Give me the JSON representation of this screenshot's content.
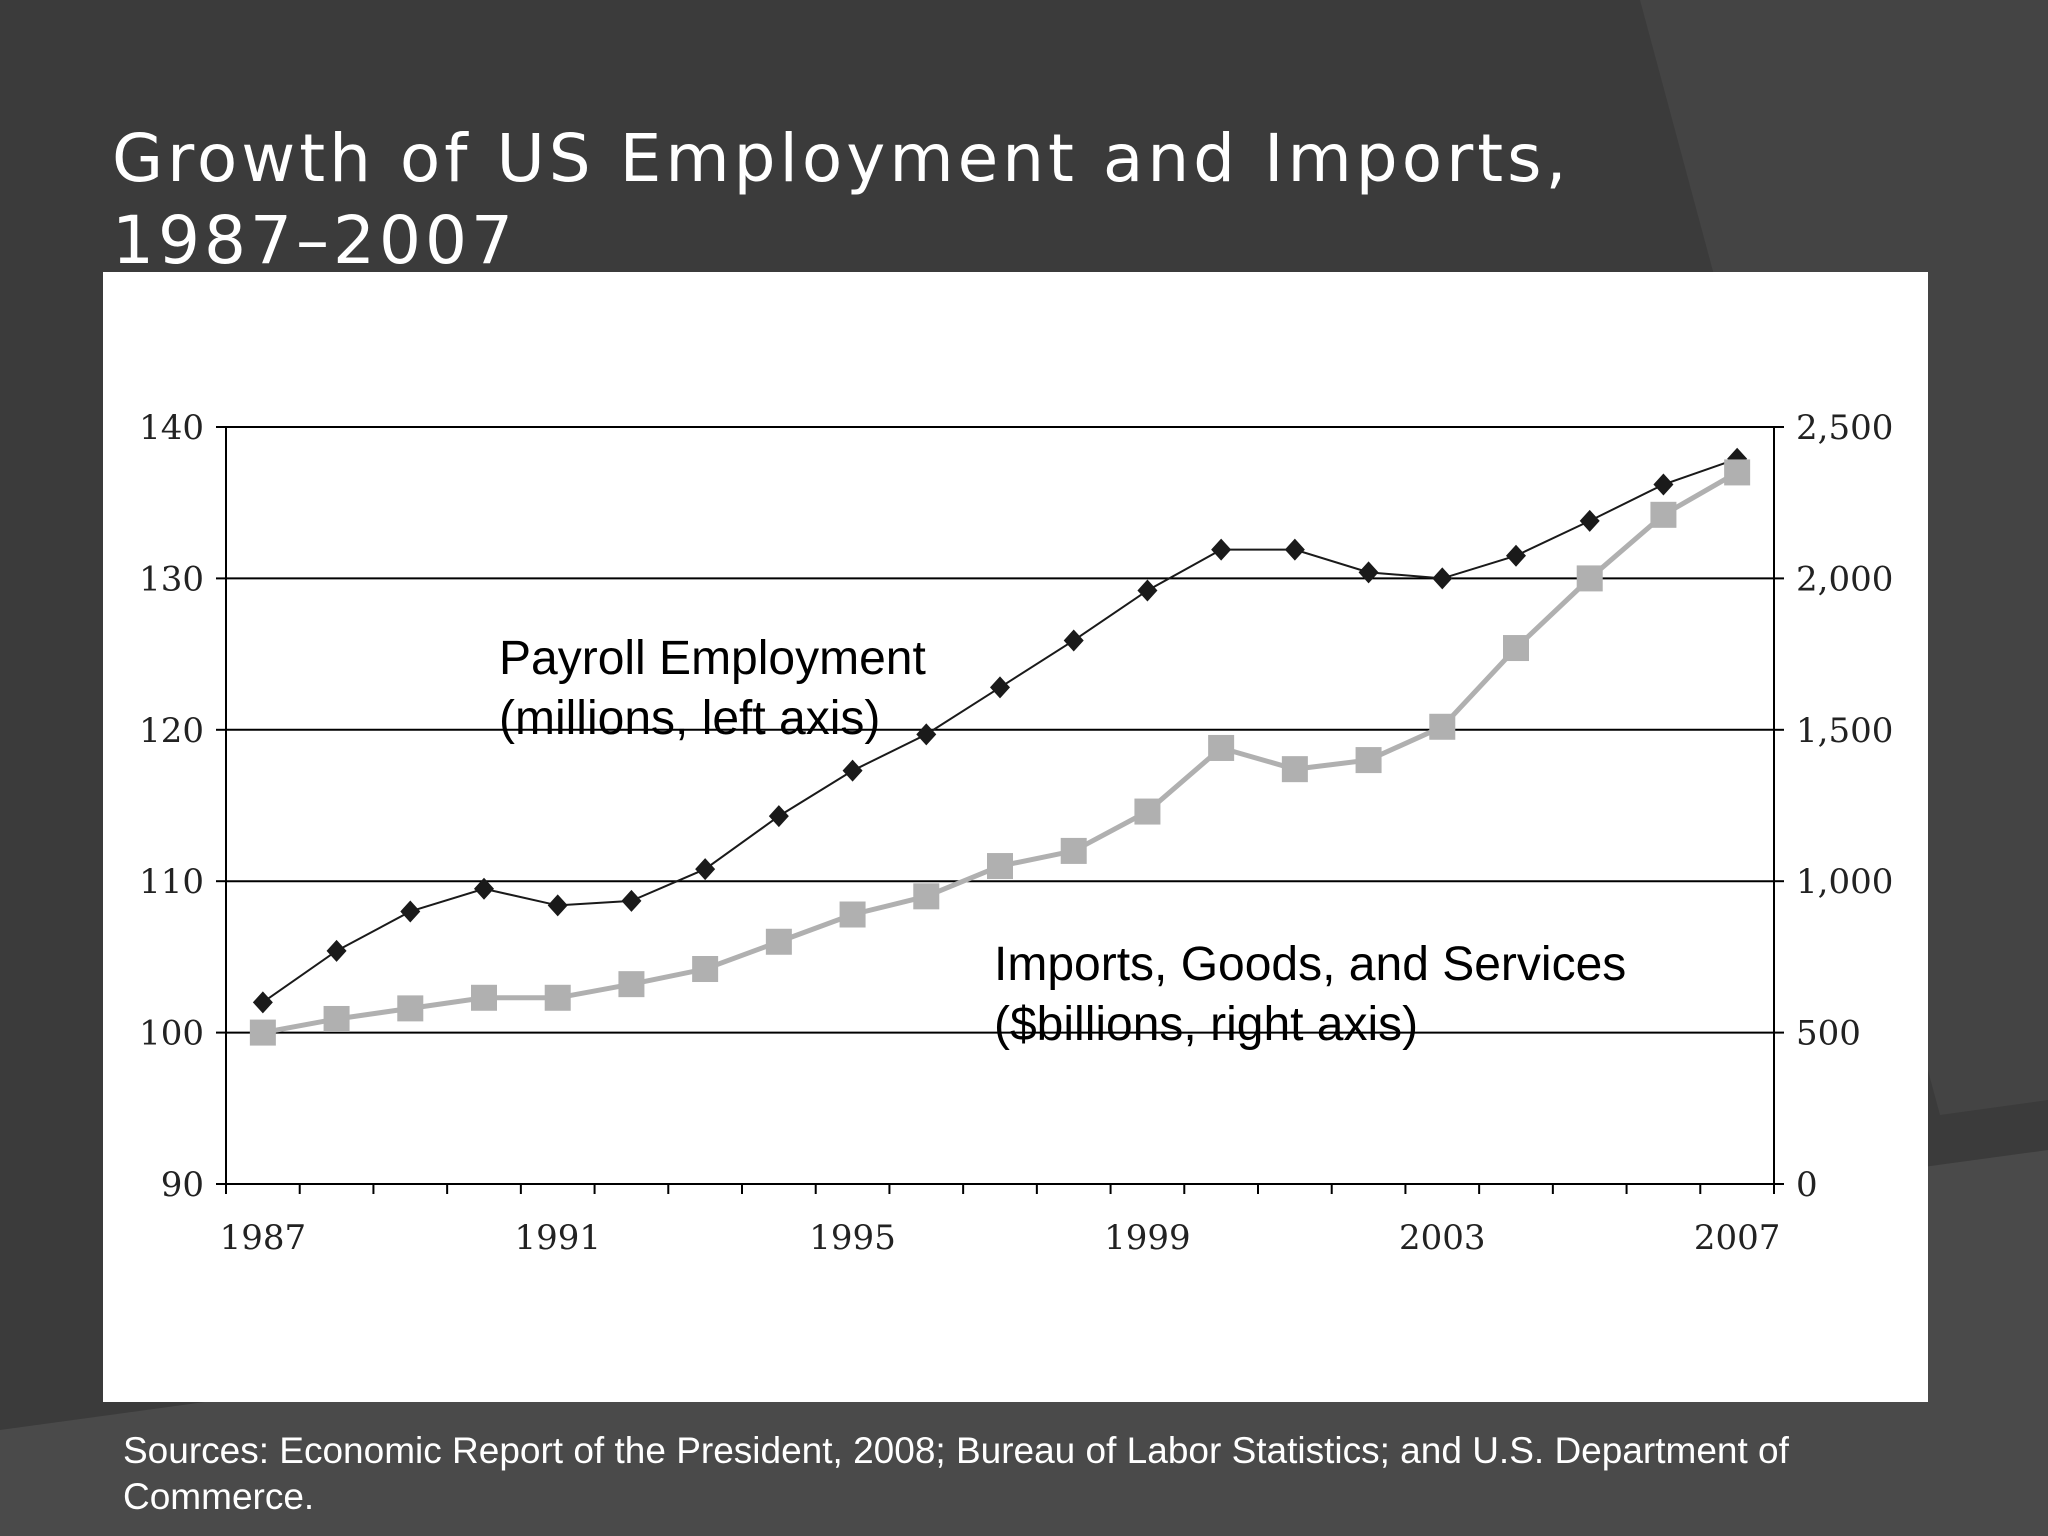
{
  "slide": {
    "title": "Growth of  US Employment and Imports, 1987–2007",
    "sources": "Sources: Economic Report of the President, 2008; Bureau of Labor Statistics; and U.S. Department of Commerce."
  },
  "colors": {
    "background": "#3b3b3b",
    "employment_line": "#1a1a1a",
    "imports_line": "#b0b0b0"
  },
  "chart_data": {
    "type": "line",
    "x": [
      1987,
      1988,
      1989,
      1990,
      1991,
      1992,
      1993,
      1994,
      1995,
      1996,
      1997,
      1998,
      1999,
      2000,
      2001,
      2002,
      2003,
      2004,
      2005,
      2006,
      2007
    ],
    "x_tick_labels": [
      "1987",
      "1991",
      "1995",
      "1999",
      "2003",
      "2007"
    ],
    "xlim": [
      1987,
      2007
    ],
    "left_axis": {
      "ylim": [
        90,
        140
      ],
      "ticks": [
        "90",
        "100",
        "110",
        "120",
        "130",
        "140"
      ]
    },
    "right_axis": {
      "ylim": [
        0,
        2500
      ],
      "ticks": [
        "0",
        "500",
        "1,000",
        "1,500",
        "2,000",
        "2,500"
      ]
    },
    "grid": "horizontal",
    "series": [
      {
        "name": "Payroll Employment (millions, left axis)",
        "label_line1": "Payroll Employment",
        "label_line2": "(millions, left axis)",
        "axis": "left",
        "marker": "diamond",
        "values": [
          102.0,
          105.4,
          108.0,
          109.5,
          108.4,
          108.7,
          110.8,
          114.3,
          117.3,
          119.7,
          122.8,
          125.9,
          129.2,
          131.9,
          131.9,
          130.4,
          130.0,
          131.5,
          133.8,
          136.2,
          137.9
        ]
      },
      {
        "name": "Imports, Goods, and Services ($billions, right axis)",
        "label_line1": "Imports, Goods, and Services",
        "label_line2": "($billions, right axis)",
        "axis": "right",
        "marker": "square",
        "values": [
          500,
          545,
          580,
          615,
          615,
          660,
          710,
          800,
          890,
          950,
          1050,
          1100,
          1230,
          1440,
          1370,
          1400,
          1510,
          1770,
          2000,
          2210,
          2350
        ]
      }
    ]
  }
}
